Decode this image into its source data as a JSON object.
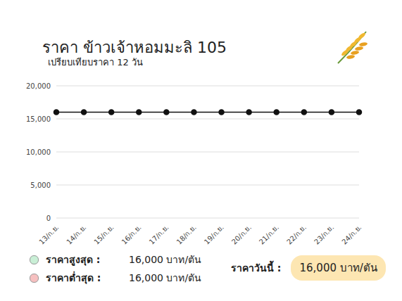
{
  "chart_data": {
    "type": "line",
    "title": "ราคา ข้าวเจ้าหอมมะลิ 105",
    "subtitle": "เปรียบเทียบราคา 12 วัน",
    "categories": [
      "13/ก.ย.",
      "14/ก.ย.",
      "15/ก.ย.",
      "16/ก.ย.",
      "17/ก.ย.",
      "18/ก.ย.",
      "19/ก.ย.",
      "20/ก.ย.",
      "21/ก.ย.",
      "22/ก.ย.",
      "23/ก.ย.",
      "24/ก.ย."
    ],
    "values": [
      16000,
      16000,
      16000,
      16000,
      16000,
      16000,
      16000,
      16000,
      16000,
      16000,
      16000,
      16000
    ],
    "color": "#111111",
    "marker": "circle",
    "ylim": [
      0,
      20000
    ],
    "yticks": [
      0,
      {
        "value": 5000,
        "label": "5,000"
      },
      {
        "value": 10000,
        "label": "10,000"
      },
      {
        "value": 15000,
        "label": "15,000"
      },
      {
        "value": 20000,
        "label": "20,000"
      }
    ],
    "grid": true,
    "annotations": [
      {
        "label": "ราคาสูงสุด :",
        "text": "16,000 บาท/ตัน",
        "color": "#c9efd6"
      },
      {
        "label": "ราคาต่ำสุด :",
        "text": "16,000 บาท/ตัน",
        "color": "#f6c0c0"
      },
      {
        "label": "ราคาวันนี้ :",
        "text": "16,000 บาท/ตัน",
        "color": "#fde6b2"
      }
    ]
  }
}
